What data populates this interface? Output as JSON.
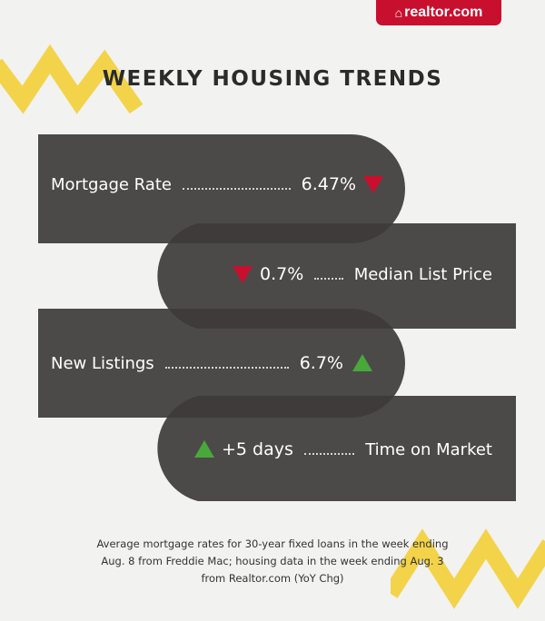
{
  "brand": {
    "logo_text": "realtor.com",
    "color": "#c8102e"
  },
  "title": "WEEKLY HOUSING TRENDS",
  "colors": {
    "band": "#3e3b3b",
    "down": "#c8102e",
    "up": "#49a83a",
    "zigzag": "#f3d34a"
  },
  "metrics": [
    {
      "label": "Mortgage Rate",
      "value": "6.47%",
      "direction": "down",
      "icon": "down-arrow-icon"
    },
    {
      "label": "Median List Price",
      "value": "0.7%",
      "direction": "down",
      "icon": "down-arrow-icon"
    },
    {
      "label": "New Listings",
      "value": "6.7%",
      "direction": "up",
      "icon": "up-arrow-icon"
    },
    {
      "label": "Time on Market",
      "value": "+5 days",
      "direction": "up",
      "icon": "up-arrow-icon"
    }
  ],
  "footnote": {
    "line1": "Average mortgage rates for 30-year fixed loans in the week ending",
    "line2": "Aug. 8 from Freddie Mac; housing data in the week ending Aug. 3",
    "line3": "from Realtor.com (YoY Chg)"
  }
}
